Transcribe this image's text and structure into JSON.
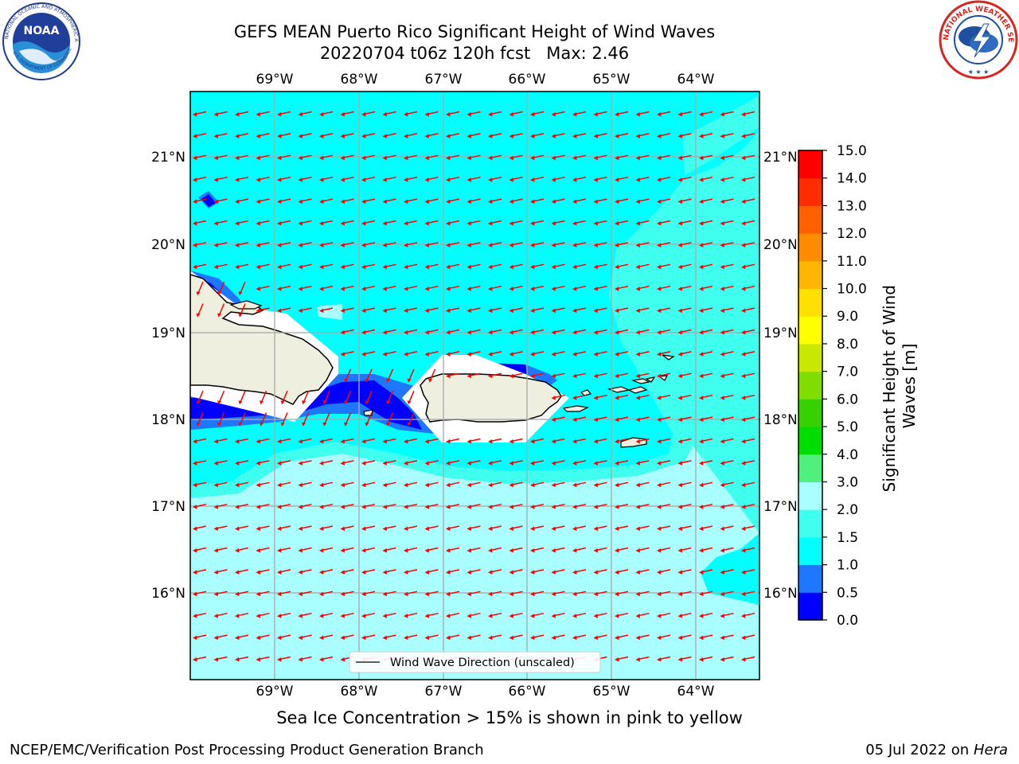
{
  "header": {
    "title_line1": "GEFS MEAN Puerto Rico Significant Height of Wind Waves",
    "title_line2": "20220704 t06z 120h fcst   Max: 2.46"
  },
  "logos": {
    "left": "NOAA",
    "left_ring_text": "NATIONAL OCEANIC AND ATMOSPHERIC ADMINISTRATION",
    "left_ring_bottom": "U.S. DEPARTMENT OF COMMERCE",
    "right_ring_text": "NATIONAL WEATHER SERVICE"
  },
  "map": {
    "lon_labels": [
      "69°W",
      "68°W",
      "67°W",
      "66°W",
      "65°W",
      "64°W"
    ],
    "lat_labels": [
      "21°N",
      "20°N",
      "19°N",
      "18°N",
      "17°N",
      "16°N"
    ],
    "lon_range": [
      -70.0,
      -63.25
    ],
    "lat_range": [
      15.0,
      21.75
    ],
    "arrow_color": "#ff0000",
    "land_color": "#efefdf",
    "legend_label": "Wind Wave Direction (unscaled)"
  },
  "colorbar": {
    "label": "Significant Height of Wind Waves [m]",
    "ticks": [
      "0.0",
      "0.5",
      "1.0",
      "1.5",
      "2.0",
      "3.0",
      "4.0",
      "5.0",
      "6.0",
      "7.0",
      "8.0",
      "9.0",
      "10.0",
      "11.0",
      "12.0",
      "13.0",
      "14.0",
      "15.0"
    ],
    "colors": [
      "#0000ff",
      "#1e78ff",
      "#00ffff",
      "#3fffef",
      "#a9ffff",
      "#50f07c",
      "#00dd00",
      "#38d000",
      "#7fdd00",
      "#c8e800",
      "#ffff00",
      "#ffe000",
      "#ffb600",
      "#ff8c00",
      "#ff6000",
      "#ff2c00",
      "#ff0000"
    ]
  },
  "caption": "Sea Ice Concentration > 15% is shown in pink to yellow",
  "footer": {
    "left": "NCEP/EMC/Verification Post Processing Product Generation Branch",
    "date": "05 Jul 2022 on ",
    "system": "Hera"
  }
}
